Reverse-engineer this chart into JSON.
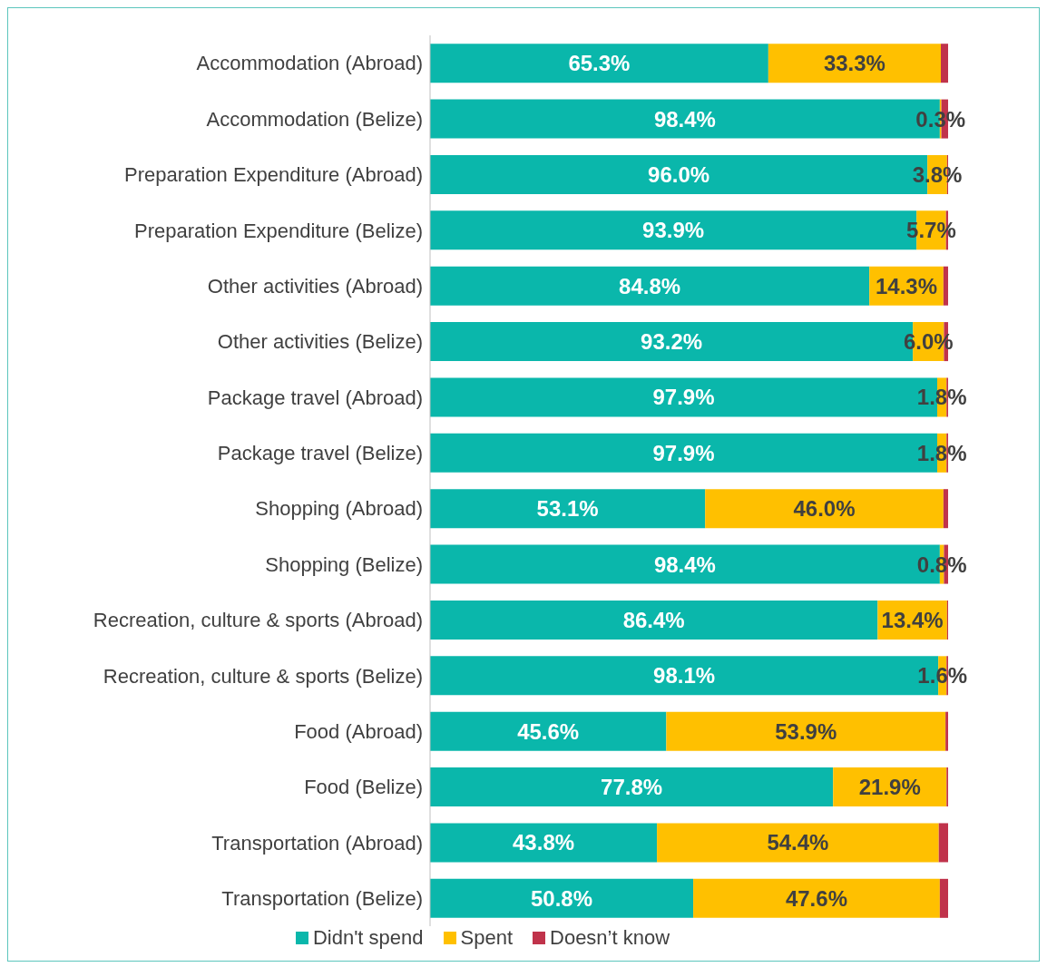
{
  "chart_data": {
    "type": "bar",
    "orientation": "horizontal",
    "stacked": true,
    "legend": "bottom",
    "tick_labels": "y",
    "xlim": [
      0,
      100
    ],
    "categories": [
      "Accommodation (Abroad)",
      "Accommodation (Belize)",
      "Preparation Expenditure (Abroad)",
      "Preparation Expenditure (Belize)",
      "Other activities (Abroad)",
      "Other activities (Belize)",
      "Package travel (Abroad)",
      "Package travel (Belize)",
      "Shopping (Abroad)",
      "Shopping (Belize)",
      "Recreation, culture & sports (Abroad)",
      "Recreation, culture & sports (Belize)",
      "Food (Abroad)",
      "Food (Belize)",
      "Transportation (Abroad)",
      "Transportation (Belize)"
    ],
    "series": [
      {
        "name": "Didn't spend",
        "color": "#0ab7ab",
        "values": [
          65.3,
          98.4,
          96.0,
          93.9,
          84.8,
          93.2,
          97.9,
          97.9,
          53.1,
          98.4,
          86.4,
          98.1,
          45.6,
          77.8,
          43.8,
          50.8
        ],
        "value_labels": [
          "65.3%",
          "98.4%",
          "96.0%",
          "93.9%",
          "84.8%",
          "93.2%",
          "97.9%",
          "97.9%",
          "53.1%",
          "98.4%",
          "86.4%",
          "98.1%",
          "45.6%",
          "77.8%",
          "43.8%",
          "50.8%"
        ]
      },
      {
        "name": "Spent",
        "color": "#ffc000",
        "values": [
          33.3,
          0.3,
          3.8,
          5.7,
          14.3,
          6.0,
          1.8,
          1.8,
          46.0,
          0.8,
          13.4,
          1.6,
          53.9,
          21.9,
          54.4,
          47.6
        ],
        "value_labels": [
          "33.3%",
          "0.3%",
          "3.8%",
          "5.7%",
          "14.3%",
          "6.0%",
          "1.8%",
          "1.8%",
          "46.0%",
          "0.8%",
          "13.4%",
          "1.6%",
          "53.9%",
          "21.9%",
          "54.4%",
          "47.6%"
        ]
      },
      {
        "name": "Doesn’t know",
        "color": "#c0334b",
        "values": [
          1.4,
          1.3,
          0.2,
          0.4,
          0.9,
          0.8,
          0.3,
          0.3,
          0.9,
          0.8,
          0.2,
          0.3,
          0.5,
          0.3,
          1.8,
          1.6
        ]
      }
    ]
  }
}
